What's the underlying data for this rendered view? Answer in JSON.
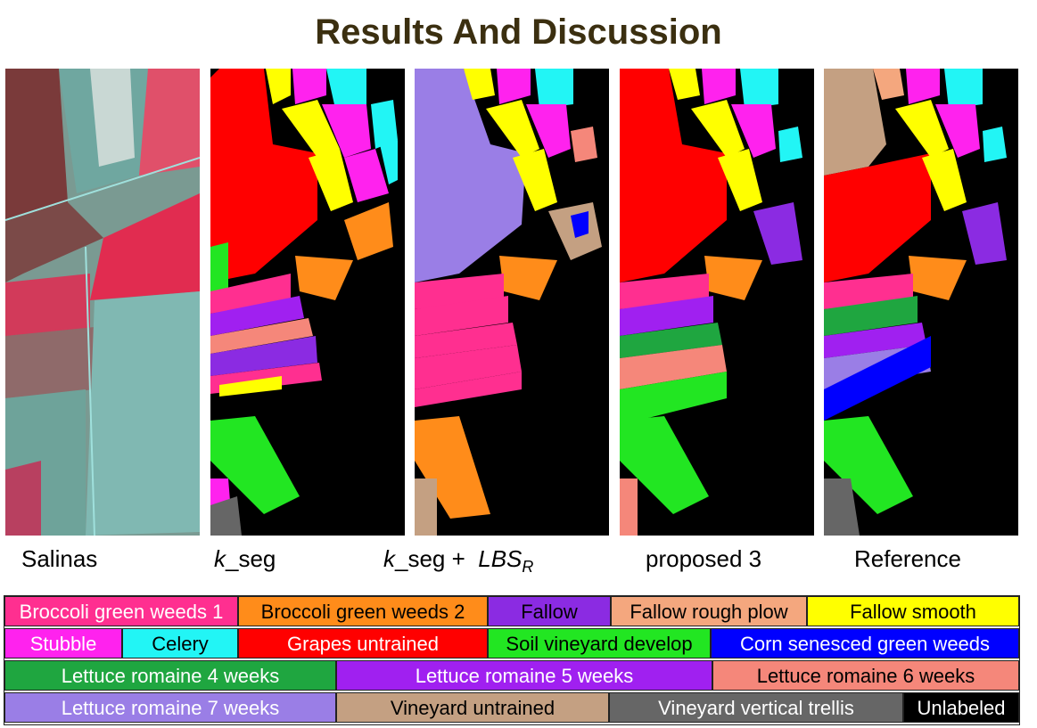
{
  "title": "Results And Discussion",
  "captions": {
    "salinas": "Salinas",
    "kseg_k": "k",
    "kseg_rest": "_seg",
    "lbs_k": "k",
    "lbs_mid": "_seg +  ",
    "lbs_main": "LBS",
    "lbs_sub": "R",
    "proposed": "proposed 3",
    "reference": "Reference"
  },
  "legend": [
    [
      {
        "label": "Broccoli green weeds 1",
        "color": "#ff2f90",
        "text": "#ffffff"
      },
      {
        "label": "Broccoli green weeds 2",
        "color": "#ff8c1a",
        "text": "#000000"
      },
      {
        "label": "Fallow",
        "color": "#8b2be2",
        "text": "#000000"
      },
      {
        "label": "Fallow rough plow",
        "color": "#f4a77e",
        "text": "#000000"
      },
      {
        "label": "Fallow smooth",
        "color": "#ffff00",
        "text": "#000000"
      }
    ],
    [
      {
        "label": "Stubble",
        "color": "#ff22ee",
        "text": "#ffffff"
      },
      {
        "label": "Celery",
        "color": "#22f5f5",
        "text": "#000000"
      },
      {
        "label": "Grapes untrained",
        "color": "#ff0000",
        "text": "#ffffff"
      },
      {
        "label": "Soil vineyard develop",
        "color": "#22e622",
        "text": "#000000"
      },
      {
        "label": "Corn senesced green weeds",
        "color": "#0000ff",
        "text": "#ffffff"
      }
    ],
    [
      {
        "label": "Lettuce romaine 4 weeks",
        "color": "#1fa640",
        "text": "#ffffff"
      },
      {
        "label": "Lettuce romaine 5 weeks",
        "color": "#a020f0",
        "text": "#ffffff"
      },
      {
        "label": "Lettuce romaine 6 weeks",
        "color": "#f5877a",
        "text": "#000000"
      }
    ],
    [
      {
        "label": "Lettuce romaine 7 weeks",
        "color": "#9a7ee6",
        "text": "#ffffff"
      },
      {
        "label": "Vineyard untrained",
        "color": "#c4a082",
        "text": "#000000"
      },
      {
        "label": "Vineyard vertical trellis",
        "color": "#666666",
        "text": "#ffffff"
      },
      {
        "label": "Unlabeled",
        "color": "#000000",
        "text": "#ffffff"
      }
    ]
  ]
}
